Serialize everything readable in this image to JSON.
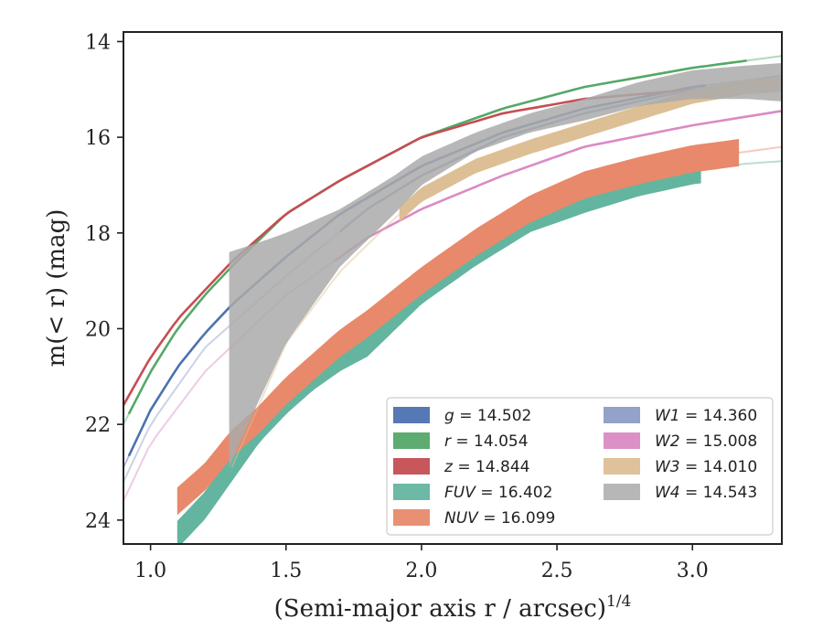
{
  "chart_data": {
    "type": "line",
    "xlabel": "(Semi-major axis r / arcsec)",
    "xlabel_sup": "1/4",
    "ylabel": "m(< r) (mag)",
    "xlim": [
      0.9,
      3.33
    ],
    "ylim": [
      24.5,
      13.8
    ],
    "y_inverted": true,
    "xticks": [
      1.0,
      1.5,
      2.0,
      2.5,
      3.0
    ],
    "xtick_labels": [
      "1.0",
      "1.5",
      "2.0",
      "2.5",
      "3.0"
    ],
    "yticks": [
      14,
      16,
      18,
      20,
      22,
      24
    ],
    "ytick_labels": [
      "14",
      "16",
      "18",
      "20",
      "22",
      "24"
    ],
    "legend_position": "lower-right",
    "legend_columns": 2,
    "series": [
      {
        "name": "g = 14.502",
        "legend_main": "g",
        "legend_value": " = 14.502",
        "color": "#4c72b0",
        "x": [
          0.9,
          1.0,
          1.1,
          1.2,
          1.3,
          1.5,
          1.7,
          2.0,
          2.3,
          2.6,
          3.0,
          3.33
        ],
        "y": [
          22.9,
          21.7,
          20.8,
          20.1,
          19.5,
          18.5,
          17.6,
          16.6,
          15.9,
          15.4,
          14.95,
          14.72
        ],
        "solid_from": 0.92,
        "solid_to": 3.05,
        "band": 0.08
      },
      {
        "name": "r = 14.054",
        "legend_main": "r",
        "legend_value": " = 14.054",
        "color": "#55a868",
        "x": [
          0.9,
          1.0,
          1.1,
          1.2,
          1.3,
          1.5,
          1.7,
          2.0,
          2.3,
          2.6,
          3.0,
          3.33
        ],
        "y": [
          22.0,
          20.9,
          20.0,
          19.3,
          18.7,
          17.6,
          16.9,
          16.0,
          15.4,
          14.95,
          14.55,
          14.3
        ],
        "solid_from": 0.92,
        "solid_to": 3.2,
        "band": 0.06
      },
      {
        "name": "z = 14.844",
        "legend_main": "z",
        "legend_value": " = 14.844",
        "color": "#c44e52",
        "x": [
          0.9,
          1.0,
          1.1,
          1.2,
          1.3,
          1.5,
          1.7,
          2.0,
          2.3,
          2.6,
          3.0,
          3.33
        ],
        "y": [
          21.6,
          20.6,
          19.8,
          19.2,
          18.6,
          17.6,
          16.9,
          16.0,
          15.5,
          15.2,
          15.0,
          14.9
        ],
        "solid_from": 0.9,
        "solid_to": 3.33,
        "band": 0.06
      },
      {
        "name": "FUV = 16.402",
        "legend_main": "FUV",
        "legend_value": " = 16.402",
        "color": "#64b5a0",
        "x": [
          1.1,
          1.2,
          1.3,
          1.4,
          1.5,
          1.6,
          1.7,
          1.8,
          2.0,
          2.2,
          2.4,
          2.6,
          2.8,
          3.0,
          3.2,
          3.33
        ],
        "y": [
          24.3,
          23.7,
          22.9,
          22.1,
          21.5,
          21.0,
          20.6,
          20.3,
          19.2,
          18.4,
          17.7,
          17.3,
          16.95,
          16.7,
          16.55,
          16.5
        ],
        "solid_from": 1.1,
        "solid_to": 3.03,
        "band": 0.55
      },
      {
        "name": "NUV = 16.099",
        "legend_main": "NUV",
        "legend_value": " = 16.099",
        "color": "#e8896b",
        "x": [
          1.1,
          1.2,
          1.3,
          1.4,
          1.5,
          1.6,
          1.7,
          1.8,
          2.0,
          2.2,
          2.4,
          2.6,
          2.8,
          3.0,
          3.2,
          3.33
        ],
        "y": [
          23.6,
          23.1,
          22.4,
          21.9,
          21.3,
          20.8,
          20.3,
          19.9,
          19.0,
          18.2,
          17.5,
          17.0,
          16.7,
          16.45,
          16.3,
          16.2
        ],
        "solid_from": 1.1,
        "solid_to": 3.17,
        "band": 0.55
      },
      {
        "name": "W1 = 14.360",
        "legend_main": "W1",
        "legend_value": " = 14.360",
        "color": "#8c9dc5",
        "x": [
          0.9,
          1.0,
          1.2,
          1.5,
          1.8,
          2.0,
          2.3,
          2.6,
          3.0,
          3.33
        ],
        "y": [
          23.2,
          22.0,
          20.4,
          18.9,
          17.5,
          16.8,
          16.0,
          15.5,
          15.0,
          14.7
        ],
        "solid_from": 1.7,
        "solid_to": 3.05,
        "band": 0.1
      },
      {
        "name": "W2 = 15.008",
        "legend_main": "W2",
        "legend_value": " = 15.008",
        "color": "#da8bc3",
        "x": [
          0.9,
          1.0,
          1.2,
          1.5,
          1.8,
          2.0,
          2.3,
          2.6,
          3.0,
          3.33
        ],
        "y": [
          23.6,
          22.4,
          20.9,
          19.3,
          18.1,
          17.5,
          16.8,
          16.2,
          15.75,
          15.45
        ],
        "solid_from": 1.68,
        "solid_to": 3.33,
        "band": 0.08
      },
      {
        "name": "W3 = 14.010",
        "legend_main": "W3",
        "legend_value": " = 14.010",
        "color": "#ddbf95",
        "x": [
          1.3,
          1.5,
          1.7,
          1.9,
          2.0,
          2.2,
          2.4,
          2.6,
          2.8,
          3.0,
          3.2,
          3.33
        ],
        "y": [
          22.9,
          20.3,
          18.8,
          17.7,
          17.2,
          16.6,
          16.2,
          15.85,
          15.5,
          15.15,
          14.95,
          14.9
        ],
        "solid_from": 1.92,
        "solid_to": 3.33,
        "band": 0.28
      },
      {
        "name": "W4 = 14.543",
        "legend_main": "W4",
        "legend_value": " = 14.543",
        "color": "#aaaaaa",
        "x": [
          1.29,
          1.4,
          1.5,
          1.7,
          1.9,
          2.0,
          2.2,
          2.4,
          2.6,
          2.8,
          3.0,
          3.2,
          3.33
        ],
        "y": [
          20.6,
          19.6,
          19.0,
          17.9,
          17.1,
          16.7,
          16.1,
          15.7,
          15.4,
          15.1,
          14.9,
          14.85,
          14.85
        ],
        "lower": [
          18.4,
          18.2,
          18.0,
          17.5,
          16.8,
          16.4,
          15.9,
          15.5,
          15.2,
          14.85,
          14.6,
          14.5,
          14.45
        ],
        "upper": [
          22.9,
          21.5,
          20.3,
          18.7,
          17.6,
          17.0,
          16.3,
          15.9,
          15.65,
          15.35,
          15.2,
          15.2,
          15.25
        ],
        "band_fill": true
      }
    ]
  },
  "colors": {
    "axis": "#222222",
    "background": "#ffffff"
  }
}
